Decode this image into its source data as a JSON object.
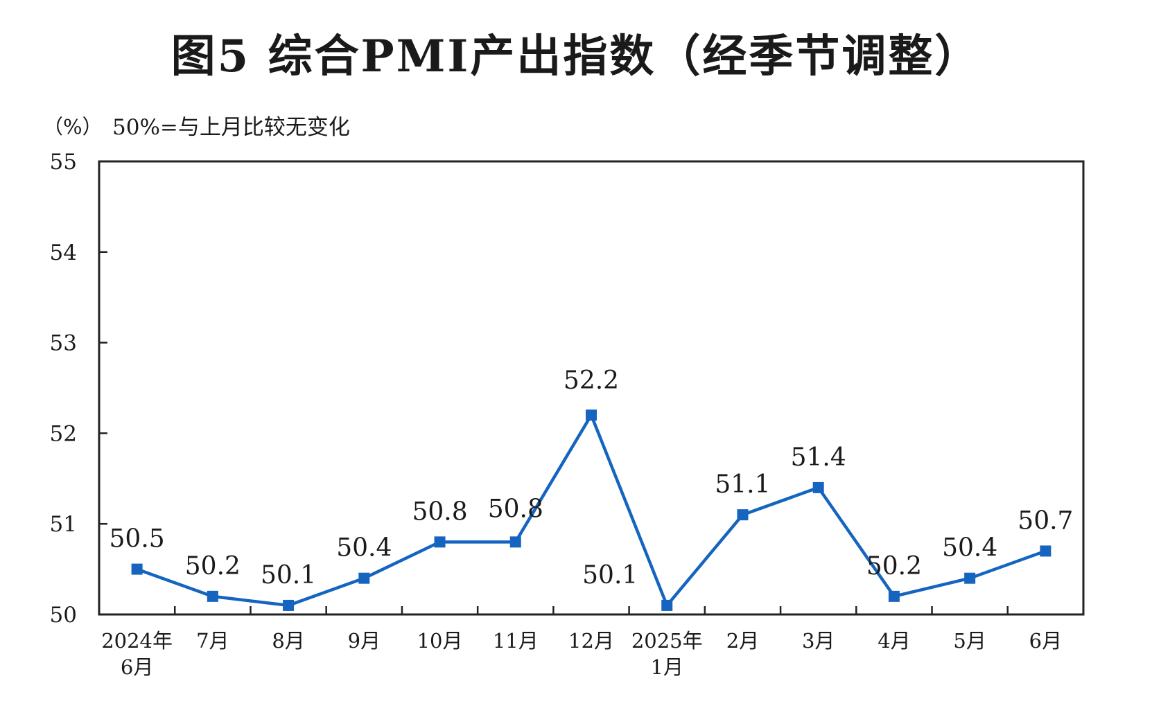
{
  "chart_data": {
    "type": "line",
    "title": "图5  综合PMI产出指数（经季节调整）",
    "ylabel": "（%）",
    "note": "50%=与上月比较无变化",
    "ylim": [
      50,
      55
    ],
    "yticks": [
      "50",
      "51",
      "52",
      "53",
      "54",
      "55"
    ],
    "categories": [
      [
        "2024年",
        "6月"
      ],
      [
        "7月"
      ],
      [
        "8月"
      ],
      [
        "9月"
      ],
      [
        "10月"
      ],
      [
        "11月"
      ],
      [
        "12月"
      ],
      [
        "2025年",
        "1月"
      ],
      [
        "2月"
      ],
      [
        "3月"
      ],
      [
        "4月"
      ],
      [
        "5月"
      ],
      [
        "6月"
      ]
    ],
    "series": [
      {
        "values": [
          50.5,
          50.2,
          50.1,
          50.4,
          50.8,
          50.8,
          52.2,
          50.1,
          51.1,
          51.4,
          50.2,
          50.4,
          50.7
        ],
        "labels": [
          "50.5",
          "50.2",
          "50.1",
          "50.4",
          "50.8",
          "50.8",
          "52.2",
          "50.1",
          "51.1",
          "51.4",
          "50.2",
          "50.4",
          "50.7"
        ],
        "color": "#1565c0"
      }
    ],
    "grid": false,
    "legend": "none"
  }
}
